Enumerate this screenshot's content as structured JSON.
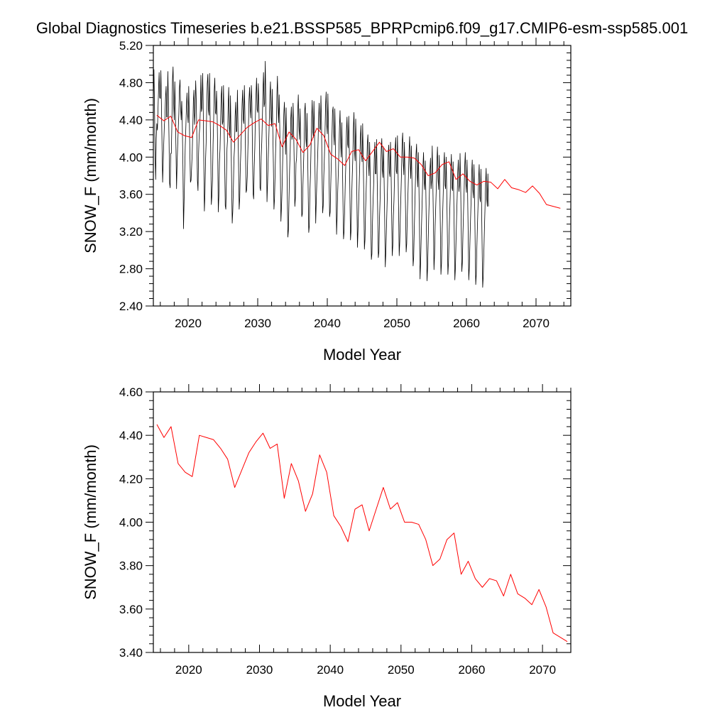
{
  "title": "Global Diagnostics Timeseries b.e21.BSSP585_BPRPcmip6.f09_g17.CMIP6-esm-ssp585.001",
  "colors": {
    "monthly": "#000000",
    "annual": "#ff0000",
    "axes": "#000000",
    "background": "#ffffff"
  },
  "chart_data": [
    {
      "type": "line",
      "xlabel": "Model Year",
      "ylabel": "SNOW_F (mm/month)",
      "xlim": [
        2015,
        2075
      ],
      "ylim": [
        2.4,
        5.2
      ],
      "xticks": [
        2020,
        2030,
        2040,
        2050,
        2060,
        2070
      ],
      "xtick_labels": [
        "2020",
        "2030",
        "2040",
        "2050",
        "2060",
        "2070"
      ],
      "yticks": [
        2.4,
        2.8,
        3.2,
        3.6,
        4.0,
        4.4,
        4.8,
        5.2
      ],
      "ytick_labels": [
        "2.40",
        "2.80",
        "3.20",
        "3.60",
        "4.00",
        "4.40",
        "4.80",
        "5.20"
      ],
      "grid": false,
      "series": [
        {
          "color": "#000000",
          "x_start": 2015.0,
          "x_step": 0.0833333,
          "values": [
            4.62,
            4.94,
            4.55,
            4.02,
            3.76,
            4.2,
            4.36,
            4.29,
            4.51,
            4.73,
            4.91,
            4.64,
            4.63,
            4.93,
            4.54,
            4.12,
            3.73,
            3.94,
            4.16,
            4.34,
            4.43,
            4.64,
            4.76,
            4.43,
            4.43,
            4.92,
            4.59,
            4.21,
            3.72,
            3.67,
            4.04,
            4.04,
            4.37,
            4.83,
            4.97,
            4.58,
            4.4,
            4.81,
            4.49,
            4.09,
            3.66,
            3.94,
            4.13,
            4.31,
            4.47,
            4.74,
            4.83,
            4.53,
            4.4,
            4.6,
            4.32,
            3.91,
            3.23,
            3.52,
            3.81,
            4.12,
            4.31,
            4.53,
            4.69,
            4.46,
            4.37,
            4.76,
            4.44,
            4.05,
            3.73,
            3.75,
            3.89,
            4.04,
            4.3,
            4.6,
            4.72,
            4.35,
            4.48,
            4.82,
            4.61,
            4.22,
            3.75,
            3.64,
            4.04,
            4.23,
            4.32,
            4.5,
            4.88,
            4.49,
            4.53,
            4.9,
            4.56,
            3.95,
            3.42,
            3.6,
            3.96,
            4.15,
            4.5,
            4.79,
            4.89,
            4.51,
            4.45,
            4.9,
            4.42,
            4.05,
            3.49,
            3.59,
            3.75,
            4.14,
            4.39,
            4.72,
            4.85,
            4.48,
            4.46,
            4.71,
            4.47,
            4.05,
            3.41,
            3.58,
            3.95,
            4.09,
            4.37,
            4.65,
            4.76,
            4.35,
            4.38,
            4.77,
            4.34,
            3.94,
            3.48,
            3.44,
            3.75,
            4.09,
            4.19,
            4.54,
            4.75,
            4.34,
            4.21,
            4.66,
            4.2,
            3.74,
            3.29,
            3.42,
            3.66,
            3.98,
            4.1,
            4.44,
            4.59,
            4.27,
            4.28,
            4.72,
            4.34,
            3.89,
            3.44,
            3.56,
            3.9,
            4.08,
            4.3,
            4.56,
            4.72,
            4.41,
            4.36,
            4.77,
            4.45,
            4.02,
            3.62,
            3.65,
            3.79,
            4.07,
            4.31,
            4.62,
            4.75,
            4.52,
            4.42,
            4.77,
            4.59,
            4.03,
            3.61,
            3.55,
            3.9,
            4.1,
            4.44,
            4.67,
            4.85,
            4.51,
            4.48,
            4.79,
            4.57,
            4.11,
            3.67,
            3.64,
            4.01,
            4.16,
            4.4,
            4.71,
            4.91,
            4.54,
            4.58,
            5.03,
            4.6,
            4.15,
            3.52,
            3.72,
            3.96,
            4.17,
            4.4,
            4.66,
            4.81,
            4.43,
            4.33,
            4.73,
            4.3,
            3.93,
            3.44,
            3.55,
            3.82,
            4.11,
            4.28,
            4.65,
            4.87,
            4.55,
            4.37,
            4.67,
            4.34,
            3.87,
            3.31,
            3.46,
            3.66,
            3.95,
            4.23,
            4.46,
            4.59,
            4.33,
            4.03,
            4.53,
            4.08,
            3.61,
            3.14,
            3.22,
            3.56,
            3.87,
            4.05,
            4.41,
            4.54,
            4.19,
            4.23,
            4.58,
            4.28,
            3.91,
            3.47,
            3.56,
            3.93,
            3.99,
            4.21,
            4.49,
            4.67,
            4.33,
            4.19,
            4.52,
            4.21,
            3.76,
            3.36,
            3.39,
            3.7,
            3.92,
            4.13,
            4.5,
            4.58,
            4.2,
            4.11,
            4.47,
            4.09,
            3.65,
            3.19,
            3.26,
            3.63,
            3.81,
            4.11,
            4.41,
            4.61,
            4.27,
            4.21,
            4.6,
            4.25,
            3.79,
            3.29,
            3.53,
            3.74,
            3.93,
            4.14,
            4.41,
            4.58,
            4.31,
            4.29,
            4.66,
            4.35,
            3.83,
            3.4,
            3.48,
            3.8,
            4.0,
            4.24,
            4.55,
            4.7,
            4.35,
            4.25,
            4.68,
            4.31,
            3.82,
            3.36,
            3.41,
            3.71,
            3.96,
            4.2,
            4.49,
            4.54,
            4.26,
            4.13,
            4.52,
            4.14,
            3.72,
            3.17,
            3.37,
            3.64,
            3.83,
            4.05,
            4.32,
            4.5,
            4.16,
            4.0,
            4.37,
            3.99,
            3.54,
            3.12,
            3.2,
            3.43,
            3.72,
            3.93,
            4.28,
            4.43,
            4.14,
            4.1,
            4.44,
            4.09,
            3.61,
            3.11,
            3.21,
            3.55,
            3.79,
            3.98,
            4.31,
            4.48,
            4.06,
            3.96,
            4.41,
            4.07,
            3.58,
            3.03,
            3.22,
            3.46,
            3.7,
            3.93,
            4.2,
            4.34,
            4.04,
            3.95,
            4.36,
            3.99,
            3.56,
            3.01,
            3.11,
            3.42,
            3.64,
            3.86,
            4.14,
            4.24,
            3.95,
            3.8,
            4.16,
            3.82,
            3.33,
            2.9,
            2.96,
            3.31,
            3.54,
            3.71,
            3.99,
            4.16,
            3.82,
            3.82,
            4.19,
            3.79,
            3.37,
            2.92,
            2.98,
            3.33,
            3.53,
            3.82,
            4.08,
            4.2,
            3.87,
            3.78,
            4.11,
            3.75,
            3.33,
            2.82,
            2.98,
            3.23,
            3.46,
            3.7,
            4.03,
            4.13,
            3.84,
            3.79,
            4.16,
            3.86,
            3.4,
            2.94,
            3.05,
            3.37,
            3.53,
            3.79,
            4.09,
            4.21,
            3.85,
            3.82,
            4.23,
            3.87,
            3.42,
            2.94,
            3.09,
            3.37,
            3.6,
            3.83,
            4.15,
            4.26,
            3.95,
            3.81,
            4.16,
            3.84,
            3.42,
            2.98,
            3.07,
            3.37,
            3.58,
            3.79,
            4.06,
            4.22,
            3.93,
            3.77,
            4.12,
            3.76,
            3.24,
            2.83,
            2.92,
            3.22,
            3.48,
            3.74,
            4.03,
            4.14,
            3.84,
            3.68,
            4.05,
            3.72,
            3.23,
            2.69,
            2.87,
            3.15,
            3.38,
            3.62,
            3.9,
            4.05,
            3.74,
            3.65,
            3.96,
            3.63,
            3.18,
            2.67,
            2.81,
            3.09,
            3.36,
            3.59,
            3.86,
            3.99,
            3.66,
            3.75,
            4.12,
            3.74,
            3.31,
            2.79,
            2.95,
            3.26,
            3.46,
            3.67,
            3.95,
            4.11,
            3.77,
            3.65,
            4.02,
            3.67,
            3.24,
            2.74,
            2.86,
            3.17,
            3.39,
            3.62,
            3.92,
            4.05,
            3.7,
            3.66,
            4.0,
            3.65,
            3.21,
            2.74,
            2.86,
            3.12,
            3.38,
            3.58,
            3.87,
            4.03,
            3.67,
            3.64,
            3.95,
            3.61,
            3.16,
            2.68,
            2.81,
            3.09,
            3.35,
            3.57,
            3.83,
            3.97,
            3.63,
            3.7,
            4.04,
            3.7,
            3.25,
            2.77,
            2.87,
            3.18,
            3.42,
            3.63,
            3.9,
            4.05,
            3.72,
            3.62,
            3.97,
            3.62,
            3.18,
            2.68,
            2.81,
            3.08,
            3.32,
            3.52,
            3.82,
            3.97,
            3.65,
            3.56,
            3.92,
            3.58,
            3.09,
            2.63,
            2.74,
            3.04,
            3.27,
            3.48,
            3.77,
            3.92,
            3.57,
            3.52,
            3.87,
            3.53,
            3.06,
            2.6,
            2.72,
            2.97,
            3.22,
            3.45,
            3.72,
            3.88,
            3.55,
            3.47,
            3.82,
            3.47
          ]
        },
        {
          "color": "#ff0000",
          "x": [
            2015.5,
            2016.5,
            2017.5,
            2018.5,
            2019.5,
            2020.5,
            2021.5,
            2022.5,
            2023.5,
            2024.5,
            2025.5,
            2026.5,
            2027.5,
            2028.5,
            2029.5,
            2030.5,
            2031.5,
            2032.5,
            2033.5,
            2034.5,
            2035.5,
            2036.5,
            2037.5,
            2038.5,
            2039.5,
            2040.5,
            2041.5,
            2042.5,
            2043.5,
            2044.5,
            2045.5,
            2046.5,
            2047.5,
            2048.5,
            2049.5,
            2050.5,
            2051.5,
            2052.5,
            2053.5,
            2054.5,
            2055.5,
            2056.5,
            2057.5,
            2058.5,
            2059.5,
            2060.5,
            2061.5,
            2062.5,
            2063.5,
            2064.5,
            2065.5,
            2066.5,
            2067.5,
            2068.5,
            2069.5,
            2070.5,
            2071.5,
            2072.5,
            2073.5
          ],
          "values": [
            4.45,
            4.39,
            4.44,
            4.27,
            4.23,
            4.21,
            4.4,
            4.39,
            4.38,
            4.34,
            4.29,
            4.16,
            4.24,
            4.32,
            4.37,
            4.41,
            4.34,
            4.36,
            4.11,
            4.27,
            4.19,
            4.05,
            4.13,
            4.31,
            4.23,
            4.03,
            3.98,
            3.91,
            4.06,
            4.08,
            3.96,
            4.06,
            4.16,
            4.06,
            4.09,
            4.0,
            4.0,
            3.99,
            3.92,
            3.8,
            3.83,
            3.92,
            3.95,
            3.76,
            3.82,
            3.74,
            3.7,
            3.74,
            3.73,
            3.66,
            3.76,
            3.67,
            3.65,
            3.62,
            3.69,
            3.61,
            3.49,
            3.47,
            3.45
          ]
        }
      ]
    },
    {
      "type": "line",
      "xlabel": "Model Year",
      "ylabel": "SNOW_F (mm/month)",
      "xlim": [
        2015,
        2074
      ],
      "ylim": [
        3.4,
        4.6
      ],
      "xticks": [
        2020,
        2030,
        2040,
        2050,
        2060,
        2070
      ],
      "xtick_labels": [
        "2020",
        "2030",
        "2040",
        "2050",
        "2060",
        "2070"
      ],
      "yticks": [
        3.4,
        3.6,
        3.8,
        4.0,
        4.2,
        4.4,
        4.6
      ],
      "ytick_labels": [
        "3.40",
        "3.60",
        "3.80",
        "4.00",
        "4.20",
        "4.40",
        "4.60"
      ],
      "grid": false,
      "series": [
        {
          "color": "#ff0000",
          "x": [
            2015.5,
            2016.5,
            2017.5,
            2018.5,
            2019.5,
            2020.5,
            2021.5,
            2022.5,
            2023.5,
            2024.5,
            2025.5,
            2026.5,
            2027.5,
            2028.5,
            2029.5,
            2030.5,
            2031.5,
            2032.5,
            2033.5,
            2034.5,
            2035.5,
            2036.5,
            2037.5,
            2038.5,
            2039.5,
            2040.5,
            2041.5,
            2042.5,
            2043.5,
            2044.5,
            2045.5,
            2046.5,
            2047.5,
            2048.5,
            2049.5,
            2050.5,
            2051.5,
            2052.5,
            2053.5,
            2054.5,
            2055.5,
            2056.5,
            2057.5,
            2058.5,
            2059.5,
            2060.5,
            2061.5,
            2062.5,
            2063.5,
            2064.5,
            2065.5,
            2066.5,
            2067.5,
            2068.5,
            2069.5,
            2070.5,
            2071.5,
            2072.5,
            2073.5
          ],
          "values": [
            4.45,
            4.39,
            4.44,
            4.27,
            4.23,
            4.21,
            4.4,
            4.39,
            4.38,
            4.34,
            4.29,
            4.16,
            4.24,
            4.32,
            4.37,
            4.41,
            4.34,
            4.36,
            4.11,
            4.27,
            4.19,
            4.05,
            4.13,
            4.31,
            4.23,
            4.03,
            3.98,
            3.91,
            4.06,
            4.08,
            3.96,
            4.06,
            4.16,
            4.06,
            4.09,
            4.0,
            4.0,
            3.99,
            3.92,
            3.8,
            3.83,
            3.92,
            3.95,
            3.76,
            3.82,
            3.74,
            3.7,
            3.74,
            3.73,
            3.66,
            3.76,
            3.67,
            3.65,
            3.62,
            3.69,
            3.61,
            3.49,
            3.47,
            3.45
          ]
        }
      ]
    }
  ]
}
